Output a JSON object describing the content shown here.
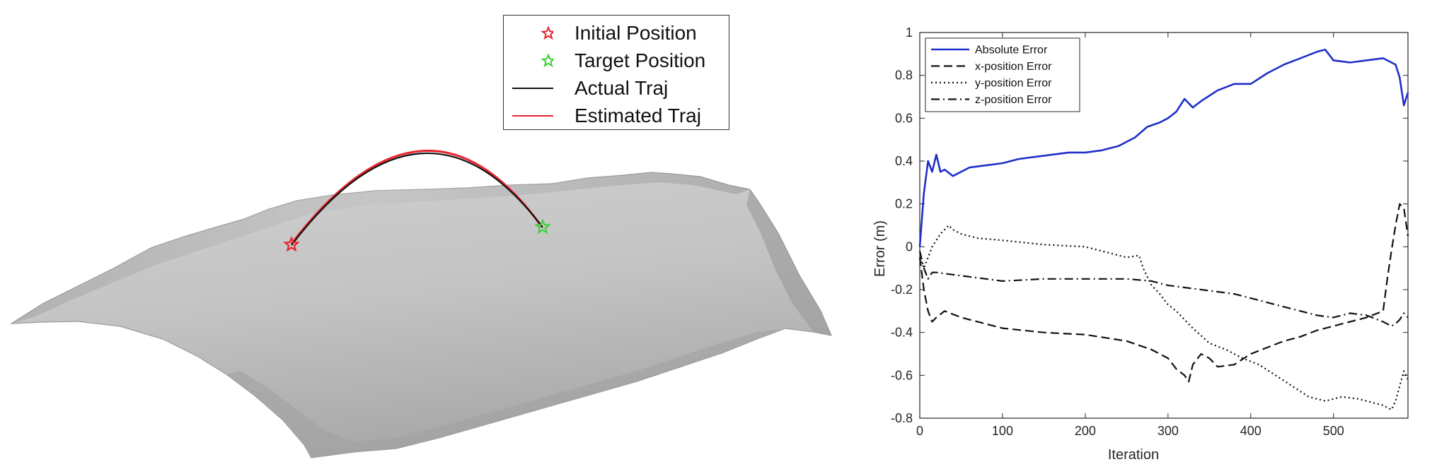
{
  "terrain": {
    "legend": [
      {
        "label": "Initial Position",
        "marker": "star",
        "color": "#e8242c"
      },
      {
        "label": "Target Position",
        "marker": "star",
        "color": "#3ed13e"
      },
      {
        "label": "Actual Traj",
        "marker": "line",
        "color": "#111111"
      },
      {
        "label": "Estimated Traj",
        "marker": "line",
        "color": "#e8242c"
      }
    ],
    "surface_color": "#c9c9c9"
  },
  "chart_data": {
    "type": "line",
    "title": "",
    "xlabel": "Iteration",
    "ylabel": "Error (m)",
    "xlim": [
      0,
      590
    ],
    "ylim": [
      -0.8,
      1
    ],
    "xticks": [
      0,
      100,
      200,
      300,
      400,
      500
    ],
    "yticks": [
      -0.8,
      -0.6,
      -0.4,
      -0.2,
      0,
      0.2,
      0.4,
      0.6,
      0.8,
      1
    ],
    "tick_labels_x": [
      "0",
      "100",
      "200",
      "300",
      "400",
      "500"
    ],
    "tick_labels_y": [
      "-0.8",
      "-0.6",
      "-0.4",
      "-0.2",
      "0",
      "0.2",
      "0.4",
      "0.6",
      "0.8",
      "1"
    ],
    "grid": false,
    "legend_position": "top-left",
    "series": [
      {
        "name": "Absolute Error",
        "color": "#1f2fc9",
        "dash": "solid",
        "x": [
          0,
          5,
          10,
          15,
          20,
          25,
          30,
          40,
          60,
          80,
          100,
          120,
          140,
          160,
          180,
          200,
          220,
          240,
          260,
          275,
          290,
          300,
          310,
          320,
          330,
          340,
          360,
          380,
          400,
          420,
          440,
          460,
          480,
          490,
          500,
          520,
          540,
          560,
          575,
          580,
          585,
          590
        ],
        "y": [
          0,
          0.25,
          0.4,
          0.35,
          0.43,
          0.35,
          0.36,
          0.33,
          0.37,
          0.38,
          0.39,
          0.41,
          0.42,
          0.43,
          0.44,
          0.44,
          0.45,
          0.47,
          0.51,
          0.56,
          0.58,
          0.6,
          0.63,
          0.69,
          0.65,
          0.68,
          0.73,
          0.76,
          0.76,
          0.81,
          0.85,
          0.88,
          0.91,
          0.92,
          0.87,
          0.86,
          0.87,
          0.88,
          0.85,
          0.79,
          0.66,
          0.72
        ]
      },
      {
        "name": "x-position Error",
        "color": "#111111",
        "dash": "dashed",
        "x": [
          0,
          5,
          10,
          15,
          20,
          30,
          50,
          100,
          150,
          200,
          250,
          280,
          300,
          310,
          320,
          325,
          330,
          340,
          350,
          360,
          380,
          400,
          420,
          440,
          460,
          480,
          500,
          520,
          540,
          560,
          565,
          570,
          575,
          580,
          585,
          590
        ],
        "y": [
          -0.05,
          -0.2,
          -0.3,
          -0.35,
          -0.33,
          -0.3,
          -0.33,
          -0.38,
          -0.4,
          -0.41,
          -0.44,
          -0.48,
          -0.52,
          -0.57,
          -0.6,
          -0.63,
          -0.55,
          -0.5,
          -0.52,
          -0.56,
          -0.55,
          -0.5,
          -0.47,
          -0.44,
          -0.42,
          -0.39,
          -0.37,
          -0.35,
          -0.33,
          -0.3,
          -0.15,
          -0.02,
          0.1,
          0.2,
          0.18,
          0.05
        ]
      },
      {
        "name": "y-position Error",
        "color": "#111111",
        "dash": "dotted",
        "x": [
          0,
          5,
          10,
          15,
          20,
          25,
          30,
          35,
          40,
          50,
          70,
          100,
          150,
          200,
          250,
          265,
          270,
          280,
          290,
          300,
          310,
          330,
          350,
          370,
          390,
          410,
          430,
          450,
          470,
          490,
          510,
          530,
          550,
          560,
          570,
          575,
          580,
          585,
          590
        ],
        "y": [
          -0.05,
          -0.1,
          -0.05,
          0,
          0.03,
          0.06,
          0.08,
          0.1,
          0.08,
          0.06,
          0.04,
          0.03,
          0.01,
          0,
          -0.05,
          -0.04,
          -0.1,
          -0.18,
          -0.22,
          -0.27,
          -0.3,
          -0.38,
          -0.45,
          -0.48,
          -0.52,
          -0.55,
          -0.6,
          -0.65,
          -0.7,
          -0.72,
          -0.7,
          -0.71,
          -0.73,
          -0.74,
          -0.76,
          -0.72,
          -0.65,
          -0.58,
          -0.62
        ]
      },
      {
        "name": "z-position Error",
        "color": "#111111",
        "dash": "dashdot",
        "x": [
          0,
          5,
          10,
          15,
          20,
          40,
          60,
          80,
          100,
          150,
          200,
          250,
          280,
          300,
          320,
          340,
          360,
          380,
          400,
          420,
          440,
          460,
          480,
          500,
          520,
          540,
          560,
          570,
          575,
          580,
          585,
          590
        ],
        "y": [
          -0.02,
          -0.1,
          -0.15,
          -0.12,
          -0.12,
          -0.13,
          -0.14,
          -0.15,
          -0.16,
          -0.15,
          -0.15,
          -0.15,
          -0.16,
          -0.18,
          -0.19,
          -0.2,
          -0.21,
          -0.22,
          -0.24,
          -0.26,
          -0.28,
          -0.3,
          -0.32,
          -0.33,
          -0.31,
          -0.32,
          -0.35,
          -0.37,
          -0.36,
          -0.34,
          -0.31,
          -0.33
        ]
      }
    ]
  }
}
